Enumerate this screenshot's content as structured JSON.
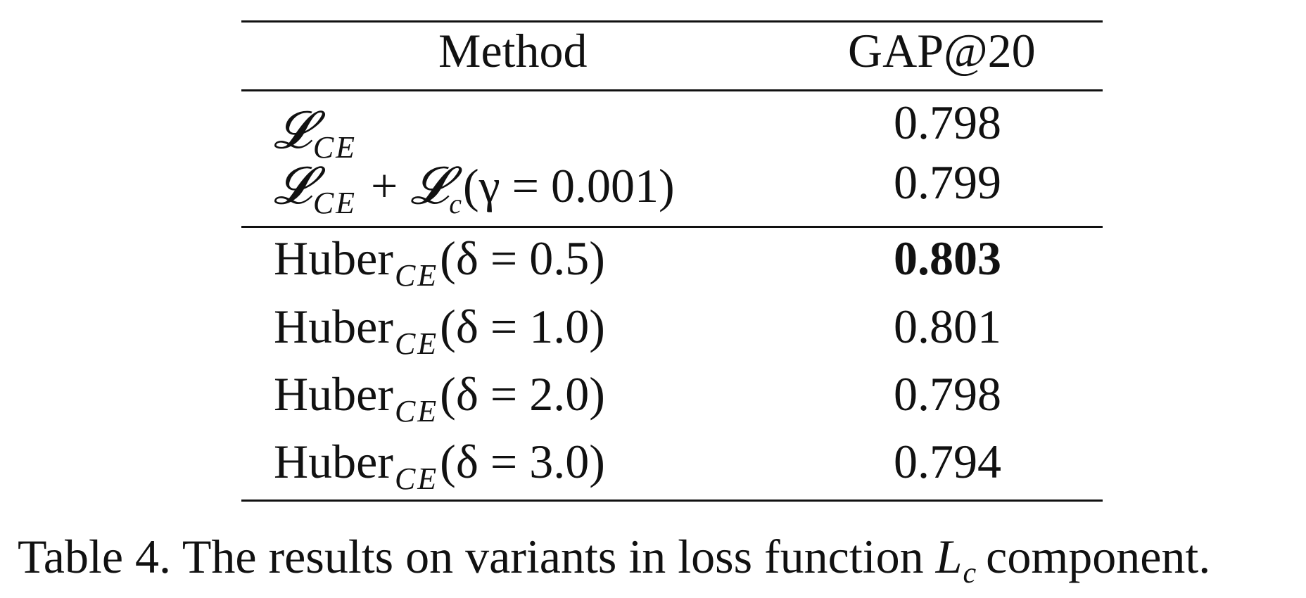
{
  "table": {
    "headers": {
      "method": "Method",
      "score": "GAP@20"
    },
    "rows": [
      {
        "method_main": "𝓛",
        "method_sub": "CE",
        "method_plus": "",
        "method_second_main": "",
        "method_second_sub": "",
        "method_expr": "",
        "score": "0.798",
        "bold": false
      },
      {
        "method_main": "𝓛",
        "method_sub": "CE",
        "method_plus": "+",
        "method_second_main": "𝓛",
        "method_second_sub": "c",
        "method_expr": "(γ = 0.001)",
        "score": "0.799",
        "bold": false
      },
      {
        "method_main": "Huber",
        "method_sub": "CE",
        "method_plus": "",
        "method_second_main": "",
        "method_second_sub": "",
        "method_expr": "(δ = 0.5)",
        "score": "0.803",
        "bold": true
      },
      {
        "method_main": "Huber",
        "method_sub": "CE",
        "method_plus": "",
        "method_second_main": "",
        "method_second_sub": "",
        "method_expr": "(δ = 1.0)",
        "score": "0.801",
        "bold": false
      },
      {
        "method_main": "Huber",
        "method_sub": "CE",
        "method_plus": "",
        "method_second_main": "",
        "method_second_sub": "",
        "method_expr": "(δ = 2.0)",
        "score": "0.798",
        "bold": false
      },
      {
        "method_main": "Huber",
        "method_sub": "CE",
        "method_plus": "",
        "method_second_main": "",
        "method_second_sub": "",
        "method_expr": "(δ = 3.0)",
        "score": "0.794",
        "bold": false
      }
    ]
  },
  "caption": {
    "prefix": "Table 4. The results on variants in loss function ",
    "math_main": "L",
    "math_sub": "c",
    "suffix": "component."
  }
}
